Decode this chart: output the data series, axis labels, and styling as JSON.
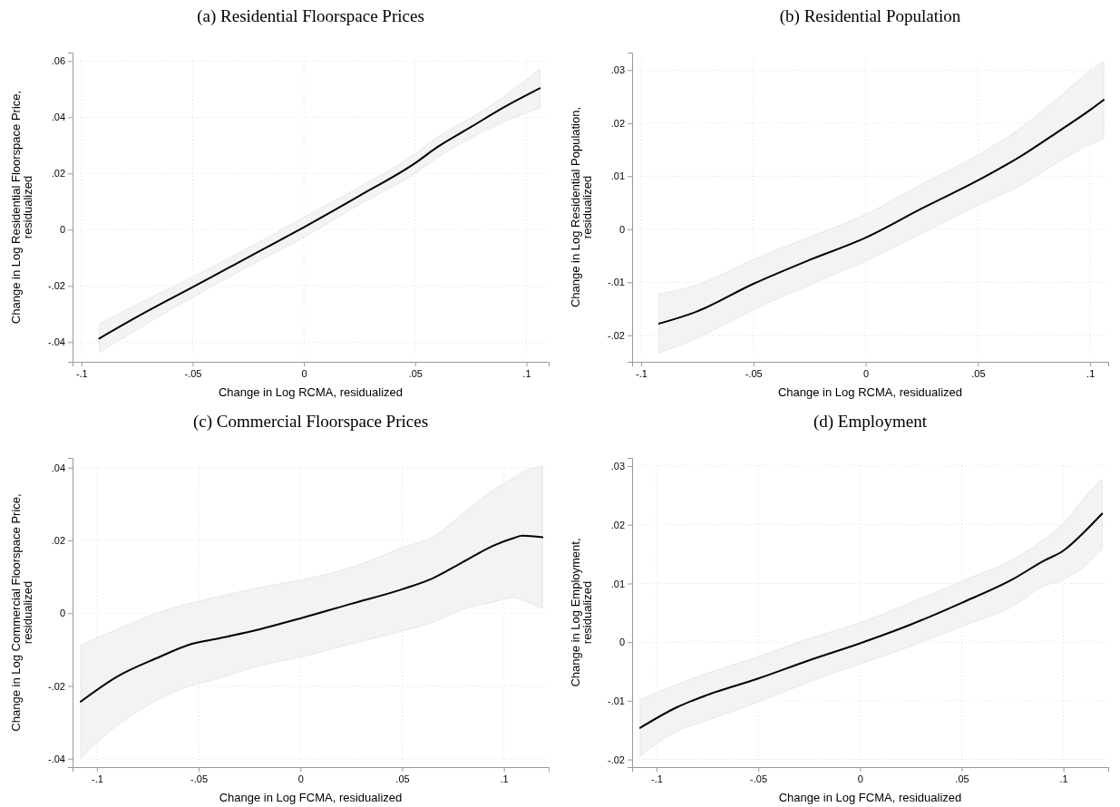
{
  "chart_data": [
    {
      "type": "line",
      "title": "(a) Residential Floorspace Prices",
      "xlabel": "Change in Log RCMA, residualized",
      "ylabel": "Change in Log Residential Floorspace Price,\nresidualized",
      "grid": true,
      "line_style": "solid",
      "marker": "none",
      "xlim": [
        -0.104,
        0.11
      ],
      "ylim": [
        -0.047,
        0.063
      ],
      "xticks": [
        {
          "value": -0.1,
          "label": "-.1"
        },
        {
          "value": -0.05,
          "label": "-.05"
        },
        {
          "value": 0,
          "label": "0"
        },
        {
          "value": 0.05,
          "label": ".05"
        },
        {
          "value": 0.1,
          "label": ".1"
        }
      ],
      "yticks": [
        {
          "value": -0.04,
          "label": "-.04"
        },
        {
          "value": -0.02,
          "label": "-.02"
        },
        {
          "value": 0,
          "label": "0"
        },
        {
          "value": 0.02,
          "label": ".02"
        },
        {
          "value": 0.04,
          "label": ".04"
        },
        {
          "value": 0.06,
          "label": ".06"
        }
      ],
      "series": [
        {
          "color": "#000000",
          "x": [
            -0.092,
            -0.075,
            -0.05,
            -0.025,
            0,
            0.025,
            0.05,
            0.06,
            0.075,
            0.09,
            0.106
          ],
          "values": [
            -0.0387,
            -0.031,
            -0.0204,
            -0.0098,
            0.0009,
            0.0121,
            0.0237,
            0.0294,
            0.0365,
            0.0436,
            0.0503
          ],
          "upper": [
            -0.0335,
            -0.0265,
            -0.0168,
            -0.0065,
            0.0044,
            0.0152,
            0.027,
            0.033,
            0.0397,
            0.0474,
            0.0573
          ],
          "lower": [
            -0.0437,
            -0.0355,
            -0.024,
            -0.0131,
            -0.0027,
            0.009,
            0.02,
            0.0256,
            0.0326,
            0.0384,
            0.0433
          ]
        }
      ]
    },
    {
      "type": "line",
      "title": "(b) Residential Population",
      "xlabel": "Change in Log RCMA, residualized",
      "ylabel": "Change in Log Residential Population,\nresidualized",
      "grid": true,
      "line_style": "solid",
      "marker": "none",
      "xlim": [
        -0.104,
        0.108
      ],
      "ylim": [
        -0.025,
        0.0333
      ],
      "xticks": [
        {
          "value": -0.1,
          "label": "-.1"
        },
        {
          "value": -0.05,
          "label": "-.05"
        },
        {
          "value": 0,
          "label": "0"
        },
        {
          "value": 0.05,
          "label": ".05"
        },
        {
          "value": 0.1,
          "label": ".1"
        }
      ],
      "yticks": [
        {
          "value": -0.02,
          "label": "-.02"
        },
        {
          "value": -0.01,
          "label": "-.01"
        },
        {
          "value": 0,
          "label": "0"
        },
        {
          "value": 0.01,
          "label": ".01"
        },
        {
          "value": 0.02,
          "label": ".02"
        },
        {
          "value": 0.03,
          "label": ".03"
        }
      ],
      "series": [
        {
          "color": "#000000",
          "x": [
            -0.092,
            -0.075,
            -0.05,
            -0.025,
            0,
            0.025,
            0.05,
            0.07,
            0.085,
            0.1,
            0.106
          ],
          "values": [
            -0.0178,
            -0.0155,
            -0.0103,
            -0.0058,
            -0.0016,
            0.0039,
            0.0092,
            0.014,
            0.0182,
            0.0225,
            0.0244
          ],
          "upper": [
            -0.0122,
            -0.0105,
            -0.0057,
            -0.0015,
            0.0028,
            0.0085,
            0.014,
            0.0194,
            0.0245,
            0.0299,
            0.0316
          ],
          "lower": [
            -0.0233,
            -0.0205,
            -0.0152,
            -0.0105,
            -0.006,
            -0.0008,
            0.0045,
            0.0085,
            0.0125,
            0.016,
            0.017
          ]
        }
      ]
    },
    {
      "type": "line",
      "title": "(c) Commercial Floorspace Prices",
      "xlabel": "Change in Log FCMA, residualized",
      "ylabel": "Change in Log Commercial Floorspace Price,\nresidualized",
      "grid": true,
      "line_style": "solid",
      "marker": "none",
      "xlim": [
        -0.112,
        0.122
      ],
      "ylim": [
        -0.0423,
        0.0427
      ],
      "xticks": [
        {
          "value": -0.1,
          "label": "-.1"
        },
        {
          "value": -0.05,
          "label": "-.05"
        },
        {
          "value": 0,
          "label": "0"
        },
        {
          "value": 0.05,
          "label": ".05"
        },
        {
          "value": 0.1,
          "label": ".1"
        }
      ],
      "yticks": [
        {
          "value": -0.04,
          "label": "-.04"
        },
        {
          "value": -0.02,
          "label": "-.02"
        },
        {
          "value": 0,
          "label": "0"
        },
        {
          "value": 0.02,
          "label": ".02"
        },
        {
          "value": 0.04,
          "label": ".04"
        }
      ],
      "series": [
        {
          "color": "#000000",
          "x": [
            -0.108,
            -0.09,
            -0.07,
            -0.055,
            -0.04,
            -0.02,
            0,
            0.025,
            0.05,
            0.065,
            0.08,
            0.095,
            0.105,
            0.109,
            0.119
          ],
          "values": [
            -0.0243,
            -0.0174,
            -0.0122,
            -0.0087,
            -0.0069,
            -0.0044,
            -0.0014,
            0.0026,
            0.0066,
            0.0096,
            0.0141,
            0.0186,
            0.0207,
            0.0213,
            0.0209
          ],
          "upper": [
            -0.0087,
            -0.0044,
            0.0001,
            0.0026,
            0.0046,
            0.0071,
            0.0091,
            0.0126,
            0.018,
            0.021,
            0.0275,
            0.034,
            0.0373,
            0.0388,
            0.0405
          ],
          "lower": [
            -0.0398,
            -0.0308,
            -0.0238,
            -0.0201,
            -0.0179,
            -0.0144,
            -0.0121,
            -0.0084,
            -0.0049,
            -0.0025,
            0.0011,
            0.0031,
            0.0043,
            0.0036,
            0.0014
          ]
        }
      ]
    },
    {
      "type": "line",
      "title": "(d) Employment",
      "xlabel": "Change in Log FCMA, residualized",
      "ylabel": "Change in Log Employment,\nresidualized",
      "grid": true,
      "line_style": "solid",
      "marker": "none",
      "xlim": [
        -0.112,
        0.122
      ],
      "ylim": [
        -0.0213,
        0.0314
      ],
      "xticks": [
        {
          "value": -0.1,
          "label": "-.1"
        },
        {
          "value": -0.05,
          "label": "-.05"
        },
        {
          "value": 0,
          "label": "0"
        },
        {
          "value": 0.05,
          "label": ".05"
        },
        {
          "value": 0.1,
          "label": ".1"
        }
      ],
      "yticks": [
        {
          "value": -0.02,
          "label": "-.02"
        },
        {
          "value": -0.01,
          "label": "-.01"
        },
        {
          "value": 0,
          "label": "0"
        },
        {
          "value": 0.01,
          "label": ".01"
        },
        {
          "value": 0.02,
          "label": ".02"
        },
        {
          "value": 0.03,
          "label": ".03"
        }
      ],
      "series": [
        {
          "color": "#000000",
          "x": [
            -0.108,
            -0.09,
            -0.075,
            -0.05,
            -0.025,
            0,
            0.025,
            0.05,
            0.075,
            0.09,
            0.1,
            0.11,
            0.119
          ],
          "values": [
            -0.0146,
            -0.0111,
            -0.009,
            -0.0062,
            -0.0031,
            -0.0002,
            0.003,
            0.0067,
            0.0107,
            0.0138,
            0.0156,
            0.0187,
            0.0219
          ],
          "upper": [
            -0.0098,
            -0.0072,
            -0.0053,
            -0.0025,
            0.0006,
            0.0033,
            0.0067,
            0.0104,
            0.0141,
            0.0174,
            0.0202,
            0.0245,
            0.0278
          ],
          "lower": [
            -0.0194,
            -0.0152,
            -0.0133,
            -0.0102,
            -0.0068,
            -0.0037,
            -0.0007,
            0.0027,
            0.0061,
            0.0095,
            0.0107,
            0.0128,
            0.0159
          ]
        }
      ]
    }
  ]
}
